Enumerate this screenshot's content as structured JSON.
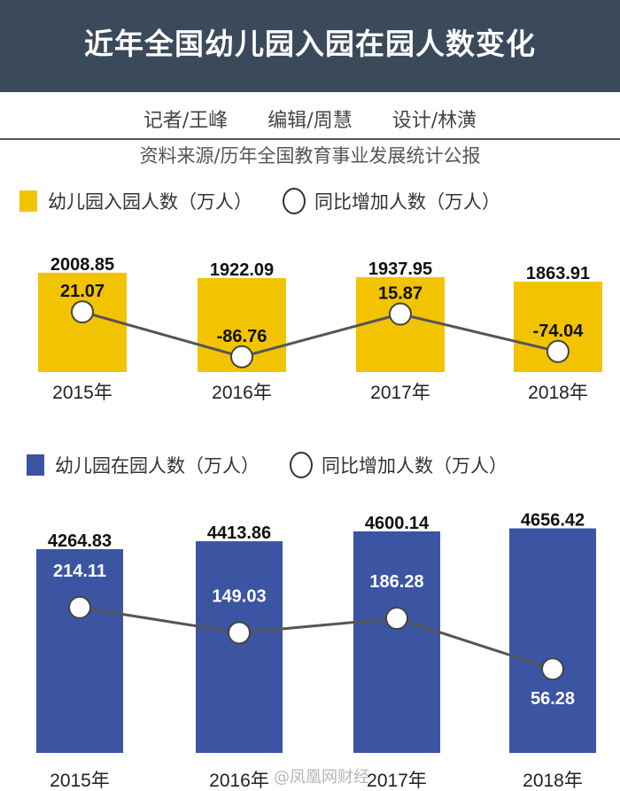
{
  "title": "近年全国幼儿园入园在园人数变化",
  "credits": [
    "记者/王峰",
    "编辑/周慧",
    "设计/林潢"
  ],
  "source": "资料来源/历年全国教育事业发展统计公报",
  "watermark": "@凤凰网财经",
  "colors": {
    "header": "#3b4a5b",
    "yellow": "#f2c300",
    "blue": "#3b55a3"
  },
  "chart_data": [
    {
      "type": "bar",
      "title": "幼儿园入园人数",
      "categories": [
        "2015年",
        "2016年",
        "2017年",
        "2018年"
      ],
      "series": [
        {
          "name": "幼儿园入园人数（万人）",
          "type": "bar",
          "values": [
            2008.85,
            1922.09,
            1937.95,
            1863.91
          ],
          "labels": [
            "2008.85",
            "1922.09",
            "1937.95",
            "1863.91"
          ]
        },
        {
          "name": "同比增加人数（万人）",
          "type": "line",
          "values": [
            21.07,
            -86.76,
            15.87,
            -74.04
          ],
          "labels": [
            "21.07",
            "-86.76",
            "15.87",
            "-74.04"
          ]
        }
      ]
    },
    {
      "type": "bar",
      "title": "幼儿园在园人数",
      "categories": [
        "2015年",
        "2016年",
        "2017年",
        "2018年"
      ],
      "series": [
        {
          "name": "幼儿园在园人数（万人）",
          "type": "bar",
          "values": [
            4264.83,
            4413.86,
            4600.14,
            4656.42
          ],
          "labels": [
            "4264.83",
            "4413.86",
            "4600.14",
            "4656.42"
          ]
        },
        {
          "name": "同比增加人数（万人）",
          "type": "line",
          "values": [
            214.11,
            149.03,
            186.28,
            56.28
          ],
          "labels": [
            "214.11",
            "149.03",
            "186.28",
            "56.28"
          ]
        }
      ]
    }
  ]
}
